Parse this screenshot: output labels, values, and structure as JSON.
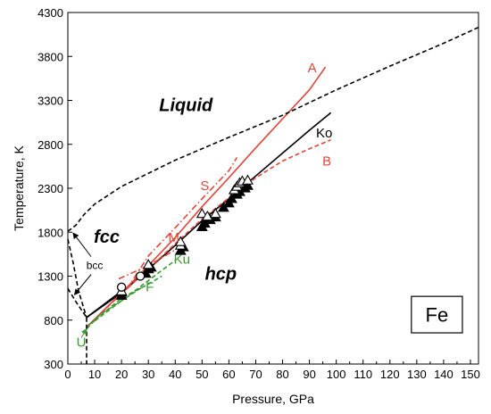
{
  "chart_data": {
    "type": "line",
    "title": "",
    "xlabel": "Pressure, GPa",
    "ylabel": "Temperature, K",
    "xlim": [
      0,
      153
    ],
    "ylim": [
      300,
      4300
    ],
    "xticks": [
      0,
      10,
      20,
      30,
      40,
      50,
      60,
      70,
      80,
      90,
      100,
      110,
      120,
      130,
      140,
      150
    ],
    "yticks": [
      300,
      800,
      1300,
      1800,
      2300,
      2800,
      3300,
      3800,
      4300
    ],
    "grid": false,
    "legend": "none",
    "colors": {
      "black": "#000000",
      "red": "#e0463a",
      "green": "#3a9a2e"
    },
    "phase_labels": [
      {
        "text": "Liquid",
        "x": 44,
        "y": 3180
      },
      {
        "text": "fcc",
        "x": 14.5,
        "y": 1680
      },
      {
        "text": "hcp",
        "x": 57,
        "y": 1260
      },
      {
        "text": "bcc",
        "x": 10,
        "y": 1380
      }
    ],
    "element_box": {
      "text": "Fe",
      "x0": 128,
      "x1": 147,
      "y0": 655,
      "y1": 1070
    },
    "series": [
      {
        "name": "Ko",
        "color": "#000000",
        "dash": "solid",
        "label_at": [
          95.5,
          2880
        ],
        "x": [
          7,
          20,
          30,
          40,
          50,
          60,
          70,
          80,
          90,
          98
        ],
        "y": [
          830,
          1110,
          1380,
          1650,
          1930,
          2180,
          2440,
          2700,
          2960,
          3160
        ]
      },
      {
        "name": "A",
        "color": "#e0463a",
        "dash": "solid",
        "label_at": [
          91,
          3620
        ],
        "x": [
          7,
          20,
          30,
          40,
          50,
          60,
          70,
          80,
          90,
          96
        ],
        "y": [
          720,
          1110,
          1420,
          1740,
          2090,
          2420,
          2760,
          3090,
          3420,
          3680
        ]
      },
      {
        "name": "B",
        "color": "#e0463a",
        "dash": "dashed",
        "label_at": [
          96.5,
          2560
        ],
        "x": [
          7,
          20,
          30,
          40,
          50,
          60,
          70,
          80,
          90,
          98
        ],
        "y": [
          720,
          1100,
          1380,
          1670,
          1950,
          2190,
          2420,
          2610,
          2750,
          2850
        ]
      },
      {
        "name": "S",
        "color": "#e0463a",
        "dash": "dashdot",
        "label_at": [
          51,
          2280
        ],
        "x": [
          22,
          30,
          40,
          50,
          60,
          63
        ],
        "y": [
          1150,
          1530,
          1850,
          2180,
          2500,
          2650
        ]
      },
      {
        "name": "M",
        "color": "#e0463a",
        "dash": "dashdot",
        "label_at": [
          39.5,
          1690
        ],
        "x": [
          19,
          30,
          40
        ],
        "y": [
          1270,
          1420,
          1600
        ]
      },
      {
        "name": "Ku",
        "color": "#3a9a2e",
        "dash": "dashed",
        "label_at": [
          42.5,
          1440
        ],
        "x": [
          10,
          20,
          30,
          40
        ],
        "y": [
          790,
          1020,
          1250,
          1480
        ]
      },
      {
        "name": "F",
        "color": "#3a9a2e",
        "dash": "dashed",
        "label_at": [
          30.5,
          1125
        ],
        "x": [
          8,
          20,
          30,
          35
        ],
        "y": [
          750,
          1050,
          1210,
          1300
        ]
      },
      {
        "name": "U",
        "color": "#3a9a2e",
        "dash": "dashed",
        "label_at": [
          5,
          500
        ],
        "x": [
          7,
          12,
          20,
          28
        ],
        "y": [
          700,
          860,
          1020,
          1180
        ]
      },
      {
        "name": "",
        "color": "#000000",
        "dash": "dashed",
        "role": "melting",
        "x": [
          0,
          3,
          6,
          10,
          20,
          40,
          60,
          80,
          100,
          120,
          140,
          153
        ],
        "y": [
          1810,
          1880,
          2000,
          2120,
          2320,
          2620,
          2880,
          3130,
          3420,
          3690,
          3950,
          4130
        ]
      },
      {
        "name": "",
        "color": "#000000",
        "dash": "dashed",
        "role": "bcc-fcc",
        "x": [
          0,
          2,
          4,
          7
        ],
        "y": [
          1720,
          1450,
          1130,
          830
        ]
      },
      {
        "name": "",
        "color": "#000000",
        "dash": "dashed",
        "role": "bcc-hcp",
        "x": [
          0,
          3,
          7
        ],
        "y": [
          1160,
          1010,
          830
        ]
      },
      {
        "name": "",
        "color": "#000000",
        "dash": "dashed",
        "role": "low-T",
        "x": [
          7,
          7
        ],
        "y": [
          830,
          300
        ]
      },
      {
        "name": "",
        "color": "#000000",
        "dash": "solid",
        "role": "solid-segment",
        "x": [
          7,
          20
        ],
        "y": [
          830,
          1130
        ]
      }
    ],
    "triangles_filled": [
      [
        20,
        1080
      ],
      [
        20,
        1120
      ],
      [
        29,
        1330
      ],
      [
        30,
        1380
      ],
      [
        31,
        1400
      ],
      [
        42,
        1590
      ],
      [
        43,
        1630
      ],
      [
        50,
        1860
      ],
      [
        51,
        1900
      ],
      [
        53,
        1940
      ],
      [
        55,
        1970
      ],
      [
        58,
        2080
      ],
      [
        60,
        2130
      ],
      [
        61,
        2180
      ],
      [
        63,
        2230
      ],
      [
        64,
        2260
      ],
      [
        66,
        2300
      ],
      [
        67,
        2330
      ]
    ],
    "triangles_open": [
      [
        20,
        1130
      ],
      [
        30,
        1430
      ],
      [
        42,
        1650
      ],
      [
        42,
        1690
      ],
      [
        50,
        2010
      ],
      [
        52,
        1980
      ],
      [
        55,
        2010
      ],
      [
        62,
        2280
      ],
      [
        63,
        2320
      ],
      [
        64,
        2360
      ],
      [
        65,
        2380
      ],
      [
        67,
        2390
      ]
    ],
    "circles_open": [
      [
        20,
        1175
      ],
      [
        27,
        1300
      ]
    ]
  }
}
